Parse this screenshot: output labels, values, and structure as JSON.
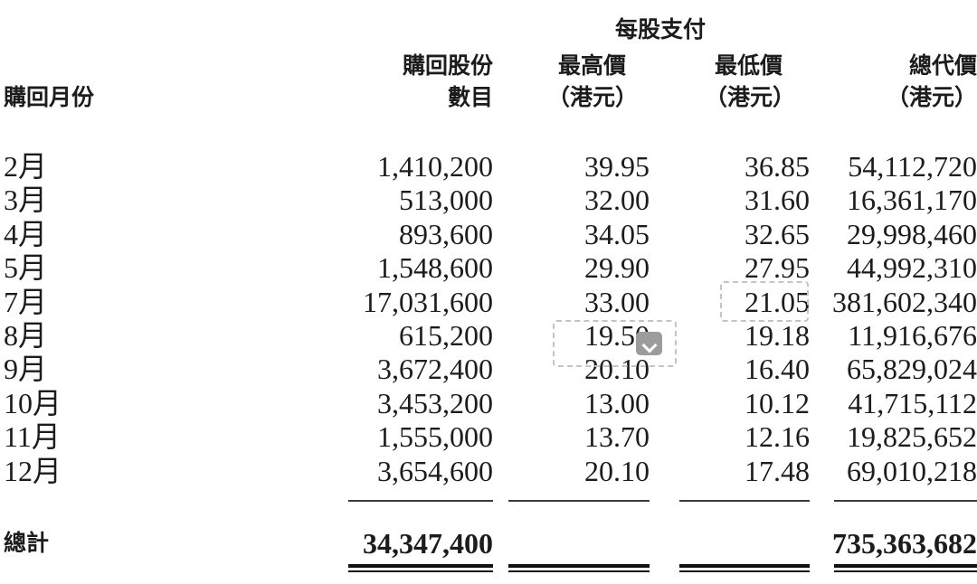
{
  "page": {
    "background": "#ffffff",
    "text_color": "#1c1c1c"
  },
  "table": {
    "group_header": "每股支付",
    "columns": {
      "month": {
        "line1": "",
        "line2": "購回月份"
      },
      "shares": {
        "line1": "購回股份",
        "line2": "數目"
      },
      "max": {
        "line1": "最高價",
        "line2": "（港元）"
      },
      "min": {
        "line1": "最低價",
        "line2": "（港元）"
      },
      "total": {
        "line1": "總代價",
        "line2": "（港元）"
      }
    },
    "rows": [
      {
        "month": "2月",
        "shares": "1,410,200",
        "max": "39.95",
        "min": "36.85",
        "total": "54,112,720"
      },
      {
        "month": "3月",
        "shares": "513,000",
        "max": "32.00",
        "min": "31.60",
        "total": "16,361,170"
      },
      {
        "month": "4月",
        "shares": "893,600",
        "max": "34.05",
        "min": "32.65",
        "total": "29,998,460"
      },
      {
        "month": "5月",
        "shares": "1,548,600",
        "max": "29.90",
        "min": "27.95",
        "total": "44,992,310"
      },
      {
        "month": "7月",
        "shares": "17,031,600",
        "max": "33.00",
        "min": "21.05",
        "total": "381,602,340"
      },
      {
        "month": "8月",
        "shares": "615,200",
        "max": "19.50",
        "min": "19.18",
        "total": "11,916,676"
      },
      {
        "month": "9月",
        "shares": "3,672,400",
        "max": "20.10",
        "min": "16.40",
        "total": "65,829,024"
      },
      {
        "month": "10月",
        "shares": "3,453,200",
        "max": "13.00",
        "min": "10.12",
        "total": "41,715,112"
      },
      {
        "month": "11月",
        "shares": "1,555,000",
        "max": "13.70",
        "min": "12.16",
        "total": "19,825,652"
      },
      {
        "month": "12月",
        "shares": "3,654,600",
        "max": "20.10",
        "min": "17.48",
        "total": "69,010,218"
      }
    ],
    "total_row": {
      "label": "總計",
      "shares": "34,347,400",
      "max": "",
      "min": "",
      "total": "735,363,682"
    }
  },
  "annotations": {
    "highlighted_min_price": {
      "row": "7月",
      "value": "21.05"
    },
    "highlighted_max_price": {
      "row": "8月",
      "value": "19.50",
      "has_dropdown": true
    },
    "dropdown_icon": "chevron-down",
    "dashed_border_color": "#c4c4c4",
    "dropdown_button_color": "#9c9c9c"
  }
}
